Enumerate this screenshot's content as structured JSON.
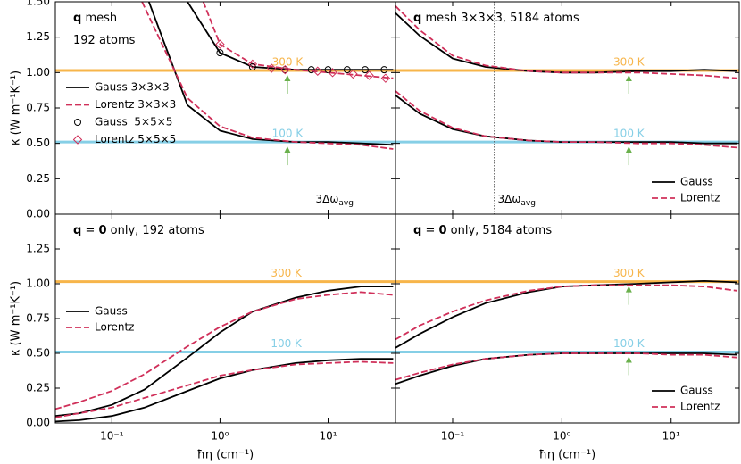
{
  "chart_data": [
    {
      "type": "line",
      "title_lines": [
        [
          {
            "text": "q",
            "bold": true
          },
          {
            "text": " mesh"
          }
        ],
        [
          {
            "text": "192 atoms"
          }
        ]
      ],
      "xlim": [
        0.03,
        42
      ],
      "ylim": [
        0,
        1.5
      ],
      "xticks": [
        0.1,
        1,
        10
      ],
      "yticks": [
        {
          "value": 0,
          "label": "0.00"
        },
        {
          "value": 0.25,
          "label": "0.25"
        },
        {
          "value": 0.5,
          "label": "0.50"
        },
        {
          "value": 0.75,
          "label": "0.75"
        },
        {
          "value": 1,
          "label": "1.00"
        },
        {
          "value": 1.25,
          "label": "1.25"
        },
        {
          "value": 1.5,
          "label": "1.50"
        }
      ],
      "ylabel": "κ (W m⁻¹K⁻¹)",
      "log_x": true,
      "legend": "center left",
      "hlines": [
        {
          "label": "300 K",
          "value": 1.015,
          "color": "#f7b54a"
        },
        {
          "label": "100 K",
          "value": 0.51,
          "color": "#86cfe6"
        }
      ],
      "arrows_x": 4.2,
      "arrow_color": "#6ab04c",
      "vline": {
        "x": 7.1,
        "text": "3Δω",
        "sub": "avg"
      },
      "series": [
        {
          "name": "Gauss 3×3×3",
          "color": "#000000",
          "dash": false,
          "curves": [
            {
              "x": [
                0.5,
                1,
                2,
                5,
                10,
                20,
                40
              ],
              "values": [
                1.5,
                1.14,
                1.04,
                1.02,
                1.02,
                1.02,
                1.02
              ]
            },
            {
              "x": [
                0.22,
                0.5,
                1,
                2,
                5,
                10,
                20,
                40
              ],
              "values": [
                1.5,
                0.77,
                0.59,
                0.53,
                0.51,
                0.51,
                0.5,
                0.49
              ]
            }
          ]
        },
        {
          "name": "Lorentz 3×3×3",
          "color": "#d0305a",
          "dash": true,
          "curves": [
            {
              "x": [
                0.7,
                1,
                2,
                5,
                10,
                20,
                40
              ],
              "values": [
                1.5,
                1.2,
                1.06,
                1.02,
                1.0,
                0.98,
                0.96
              ]
            },
            {
              "x": [
                0.19,
                0.5,
                1,
                2,
                5,
                10,
                20,
                40
              ],
              "values": [
                1.5,
                0.82,
                0.62,
                0.54,
                0.51,
                0.5,
                0.49,
                0.46
              ]
            }
          ]
        },
        {
          "name": "Gauss  5×5×5",
          "color": "#000000",
          "marker": "circle",
          "x": [
            1,
            2,
            4,
            7,
            10,
            15,
            22,
            33
          ],
          "values": [
            1.14,
            1.04,
            1.02,
            1.02,
            1.02,
            1.02,
            1.02,
            1.02
          ]
        },
        {
          "name": "Lorentz 5×5×5",
          "color": "#d0305a",
          "marker": "diamond",
          "x": [
            1,
            2,
            3,
            4,
            8,
            11,
            17,
            24,
            34
          ],
          "values": [
            1.2,
            1.06,
            1.03,
            1.02,
            1.01,
            1.0,
            0.99,
            0.98,
            0.96
          ]
        }
      ]
    },
    {
      "type": "line",
      "title_lines": [
        [
          {
            "text": "q",
            "bold": true
          },
          {
            "text": " mesh 3×3×3, 5184 atoms"
          }
        ]
      ],
      "xlim": [
        0.03,
        42
      ],
      "ylim": [
        0,
        1.5
      ],
      "xticks": [
        0.1,
        1,
        10
      ],
      "yticks": [
        0,
        0.25,
        0.5,
        0.75,
        1,
        1.25,
        1.5
      ],
      "log_x": true,
      "legend": "lower right",
      "hlines": [
        {
          "label": "300 K",
          "value": 1.015,
          "color": "#f7b54a"
        },
        {
          "label": "100 K",
          "value": 0.51,
          "color": "#86cfe6"
        }
      ],
      "arrows_x": 4.1,
      "arrow_color": "#6ab04c",
      "vline": {
        "x": 0.24,
        "text": "3Δω",
        "sub": "avg"
      },
      "series": [
        {
          "name": "Gauss",
          "color": "#000000",
          "dash": false,
          "curves": [
            {
              "x": [
                0.03,
                0.05,
                0.1,
                0.2,
                0.5,
                1,
                2,
                5,
                10,
                20,
                40
              ],
              "values": [
                1.42,
                1.26,
                1.1,
                1.04,
                1.01,
                1.0,
                1.0,
                1.01,
                1.01,
                1.02,
                1.01
              ]
            },
            {
              "x": [
                0.03,
                0.05,
                0.1,
                0.2,
                0.5,
                1,
                2,
                5,
                10,
                20,
                40
              ],
              "values": [
                0.84,
                0.71,
                0.6,
                0.55,
                0.52,
                0.51,
                0.51,
                0.51,
                0.51,
                0.5,
                0.5
              ]
            }
          ]
        },
        {
          "name": "Lorentz",
          "color": "#d0305a",
          "dash": true,
          "curves": [
            {
              "x": [
                0.03,
                0.05,
                0.1,
                0.2,
                0.5,
                1,
                2,
                5,
                10,
                20,
                40
              ],
              "values": [
                1.47,
                1.3,
                1.12,
                1.05,
                1.01,
                1.0,
                1.0,
                1.0,
                0.99,
                0.98,
                0.96
              ]
            },
            {
              "x": [
                0.03,
                0.05,
                0.1,
                0.2,
                0.5,
                1,
                2,
                5,
                10,
                20,
                40
              ],
              "values": [
                0.87,
                0.73,
                0.61,
                0.55,
                0.52,
                0.51,
                0.51,
                0.5,
                0.5,
                0.49,
                0.47
              ]
            }
          ]
        }
      ]
    },
    {
      "type": "line",
      "title_lines": [
        [
          {
            "text": "q",
            "bold": true
          },
          {
            "text": " = "
          },
          {
            "text": "0",
            "bold": true
          },
          {
            "text": " only, 192 atoms"
          }
        ]
      ],
      "xlim": [
        0.03,
        42
      ],
      "ylim": [
        0,
        1.5
      ],
      "xticks": [
        {
          "value": 0.1,
          "label": "10⁻¹"
        },
        {
          "value": 1,
          "label": "10⁰"
        },
        {
          "value": 10,
          "label": "10¹"
        }
      ],
      "yticks": [
        {
          "value": 0,
          "label": "0.00"
        },
        {
          "value": 0.25,
          "label": "0.25"
        },
        {
          "value": 0.5,
          "label": "0.50"
        },
        {
          "value": 0.75,
          "label": "0.75"
        },
        {
          "value": 1,
          "label": "1.00"
        },
        {
          "value": 1.25,
          "label": "1.25"
        }
      ],
      "ylabel": "κ (W m⁻¹K⁻¹)",
      "xlabel": "ħη (cm⁻¹)",
      "log_x": true,
      "legend": "center left",
      "hlines": [
        {
          "label": "300 K",
          "value": 1.015,
          "color": "#f7b54a"
        },
        {
          "label": "100 K",
          "value": 0.51,
          "color": "#86cfe6"
        }
      ],
      "series": [
        {
          "name": "Gauss",
          "color": "#000000",
          "dash": false,
          "curves": [
            {
              "x": [
                0.03,
                0.05,
                0.1,
                0.2,
                0.5,
                1,
                2,
                5,
                10,
                20,
                40
              ],
              "values": [
                0.05,
                0.07,
                0.13,
                0.24,
                0.47,
                0.65,
                0.8,
                0.9,
                0.95,
                0.98,
                0.98
              ]
            },
            {
              "x": [
                0.03,
                0.05,
                0.1,
                0.2,
                0.5,
                1,
                2,
                5,
                10,
                20,
                40
              ],
              "values": [
                0.01,
                0.02,
                0.05,
                0.11,
                0.23,
                0.32,
                0.38,
                0.43,
                0.45,
                0.46,
                0.46
              ]
            }
          ]
        },
        {
          "name": "Lorentz",
          "color": "#d0305a",
          "dash": true,
          "curves": [
            {
              "x": [
                0.03,
                0.05,
                0.1,
                0.2,
                0.5,
                1,
                2,
                5,
                10,
                20,
                40
              ],
              "values": [
                0.1,
                0.15,
                0.23,
                0.35,
                0.55,
                0.69,
                0.8,
                0.89,
                0.92,
                0.94,
                0.92
              ]
            },
            {
              "x": [
                0.03,
                0.05,
                0.1,
                0.2,
                0.5,
                1,
                2,
                5,
                10,
                20,
                40
              ],
              "values": [
                0.04,
                0.07,
                0.11,
                0.18,
                0.27,
                0.34,
                0.38,
                0.42,
                0.43,
                0.44,
                0.43
              ]
            }
          ]
        }
      ]
    },
    {
      "type": "line",
      "title_lines": [
        [
          {
            "text": "q",
            "bold": true
          },
          {
            "text": " = "
          },
          {
            "text": "0",
            "bold": true
          },
          {
            "text": " only, 5184 atoms"
          }
        ]
      ],
      "xlim": [
        0.03,
        42
      ],
      "ylim": [
        0,
        1.5
      ],
      "xticks": [
        {
          "value": 0.1,
          "label": "10⁻¹"
        },
        {
          "value": 1,
          "label": "10⁰"
        },
        {
          "value": 10,
          "label": "10¹"
        }
      ],
      "yticks": [
        0,
        0.25,
        0.5,
        0.75,
        1,
        1.25
      ],
      "xlabel": "ħη (cm⁻¹)",
      "log_x": true,
      "legend": "lower right",
      "hlines": [
        {
          "label": "300 K",
          "value": 1.015,
          "color": "#f7b54a"
        },
        {
          "label": "100 K",
          "value": 0.51,
          "color": "#86cfe6"
        }
      ],
      "arrows_x": 4.1,
      "arrow_color": "#6ab04c",
      "series": [
        {
          "name": "Gauss",
          "color": "#000000",
          "dash": false,
          "curves": [
            {
              "x": [
                0.03,
                0.05,
                0.1,
                0.2,
                0.5,
                1,
                2,
                5,
                10,
                20,
                40
              ],
              "values": [
                0.54,
                0.64,
                0.76,
                0.86,
                0.94,
                0.98,
                0.99,
                1.0,
                1.01,
                1.02,
                1.01
              ]
            },
            {
              "x": [
                0.03,
                0.05,
                0.1,
                0.2,
                0.5,
                1,
                2,
                5,
                10,
                20,
                40
              ],
              "values": [
                0.28,
                0.34,
                0.41,
                0.46,
                0.49,
                0.5,
                0.5,
                0.5,
                0.5,
                0.5,
                0.49
              ]
            }
          ]
        },
        {
          "name": "Lorentz",
          "color": "#d0305a",
          "dash": true,
          "curves": [
            {
              "x": [
                0.03,
                0.05,
                0.1,
                0.2,
                0.5,
                1,
                2,
                5,
                10,
                20,
                40
              ],
              "values": [
                0.6,
                0.7,
                0.8,
                0.88,
                0.95,
                0.98,
                0.99,
                0.99,
                0.99,
                0.98,
                0.95
              ]
            },
            {
              "x": [
                0.03,
                0.05,
                0.1,
                0.2,
                0.5,
                1,
                2,
                5,
                10,
                20,
                40
              ],
              "values": [
                0.31,
                0.36,
                0.42,
                0.46,
                0.49,
                0.5,
                0.5,
                0.5,
                0.49,
                0.49,
                0.47
              ]
            }
          ]
        }
      ]
    }
  ]
}
